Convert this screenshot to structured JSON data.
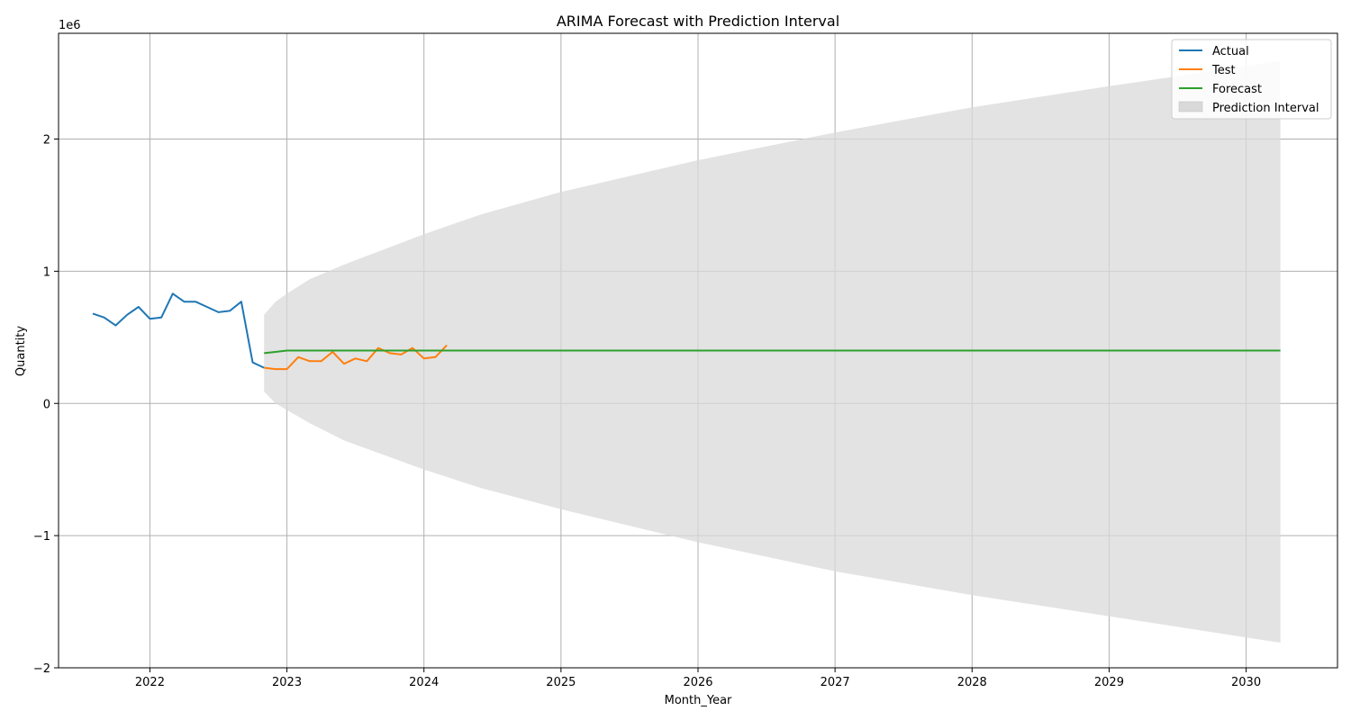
{
  "chart_data": {
    "type": "line",
    "title": "ARIMA Forecast with Prediction Interval",
    "xlabel": "Month_Year",
    "ylabel": "Quantity",
    "y_offset_label": "1e6",
    "xlim": [
      "2021-05-01",
      "2030-09-01"
    ],
    "ylim": [
      -2.0,
      2.8
    ],
    "x_ticks": [
      "2022",
      "2023",
      "2024",
      "2025",
      "2026",
      "2027",
      "2028",
      "2029",
      "2030"
    ],
    "y_ticks": [
      "−2",
      "−1",
      "0",
      "1",
      "2"
    ],
    "grid": true,
    "legend_position": "top-right",
    "colors": {
      "actual": "#1f77b4",
      "test": "#ff7f0e",
      "forecast": "#2ca02c",
      "interval": "#d9d9d9"
    },
    "series": [
      {
        "name": "Actual",
        "x": [
          "2021-08",
          "2021-09",
          "2021-10",
          "2021-11",
          "2021-12",
          "2022-01",
          "2022-02",
          "2022-03",
          "2022-04",
          "2022-05",
          "2022-06",
          "2022-07",
          "2022-08",
          "2022-09",
          "2022-10",
          "2022-11"
        ],
        "y": [
          0.68,
          0.65,
          0.59,
          0.67,
          0.73,
          0.64,
          0.65,
          0.83,
          0.77,
          0.77,
          0.73,
          0.69,
          0.7,
          0.77,
          0.31,
          0.27
        ]
      },
      {
        "name": "Test",
        "x": [
          "2022-11",
          "2022-12",
          "2023-01",
          "2023-02",
          "2023-03",
          "2023-04",
          "2023-05",
          "2023-06",
          "2023-07",
          "2023-08",
          "2023-09",
          "2023-10",
          "2023-11",
          "2023-12",
          "2024-01",
          "2024-02",
          "2024-03"
        ],
        "y": [
          0.27,
          0.26,
          0.26,
          0.35,
          0.32,
          0.32,
          0.39,
          0.3,
          0.34,
          0.32,
          0.42,
          0.38,
          0.37,
          0.42,
          0.34,
          0.35,
          0.44
        ]
      },
      {
        "name": "Forecast",
        "x": [
          "2022-11",
          "2022-12",
          "2023-01",
          "2023-03",
          "2024-01",
          "2026-01",
          "2028-01",
          "2030-04"
        ],
        "y": [
          0.38,
          0.39,
          0.4,
          0.4,
          0.4,
          0.4,
          0.4,
          0.4
        ]
      }
    ],
    "interval": {
      "name": "Prediction Interval",
      "x": [
        "2022-11",
        "2022-12",
        "2023-01",
        "2023-03",
        "2023-06",
        "2024-01",
        "2024-06",
        "2025-01",
        "2026-01",
        "2027-01",
        "2028-01",
        "2029-01",
        "2030-04"
      ],
      "lower": [
        0.09,
        0.0,
        -0.05,
        -0.15,
        -0.28,
        -0.5,
        -0.64,
        -0.8,
        -1.05,
        -1.27,
        -1.45,
        -1.61,
        -1.81
      ],
      "upper": [
        0.67,
        0.77,
        0.83,
        0.94,
        1.05,
        1.28,
        1.43,
        1.6,
        1.84,
        2.05,
        2.24,
        2.4,
        2.59
      ]
    }
  }
}
